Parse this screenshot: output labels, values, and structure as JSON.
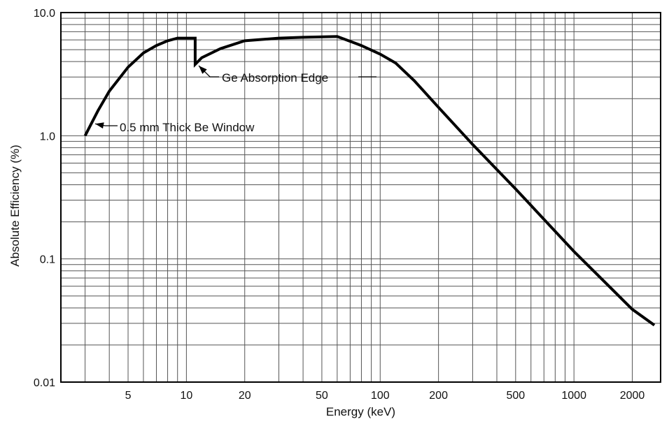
{
  "chart_data": {
    "type": "line",
    "title": "",
    "xlabel": "Energy (keV)",
    "ylabel": "Absolute Efficiency (%)",
    "x_scale": "log",
    "y_scale": "log",
    "xlim": [
      2.25,
      2800
    ],
    "ylim": [
      0.01,
      10
    ],
    "grid": true,
    "legend": "none",
    "x_ticks": [
      {
        "value": 5,
        "label": "5"
      },
      {
        "value": 10,
        "label": "10"
      },
      {
        "value": 20,
        "label": "20"
      },
      {
        "value": 50,
        "label": "50"
      },
      {
        "value": 100,
        "label": "100"
      },
      {
        "value": 200,
        "label": "200"
      },
      {
        "value": 500,
        "label": "500"
      },
      {
        "value": 1000,
        "label": "1000"
      },
      {
        "value": 2000,
        "label": "2000"
      }
    ],
    "y_ticks": [
      {
        "value": 0.01,
        "label": "0.01"
      },
      {
        "value": 0.1,
        "label": "0.1"
      },
      {
        "value": 1,
        "label": "1.0"
      },
      {
        "value": 10,
        "label": "10.0"
      }
    ],
    "series": [
      {
        "name": "",
        "color": "#000000",
        "x": [
          3,
          3.5,
          4,
          5,
          6,
          7,
          8,
          9,
          10,
          11.1,
          11.1,
          11.1,
          12,
          15,
          20,
          30,
          40,
          60,
          80,
          100,
          120,
          150,
          200,
          300,
          500,
          1000,
          2000,
          2600
        ],
        "y": [
          1.0,
          1.6,
          2.3,
          3.6,
          4.7,
          5.4,
          5.9,
          6.2,
          6.2,
          6.2,
          6.1,
          3.8,
          4.3,
          5.1,
          5.9,
          6.2,
          6.3,
          6.4,
          5.4,
          4.6,
          3.9,
          2.8,
          1.7,
          0.85,
          0.37,
          0.115,
          0.039,
          0.029
        ]
      }
    ],
    "annotations": [
      {
        "text": "Ge Absorption Edge",
        "x": 11.2,
        "y": 3.8
      },
      {
        "text": "0.5 mm Thick Be Window",
        "x": 3.3,
        "y": 1.25
      }
    ]
  }
}
